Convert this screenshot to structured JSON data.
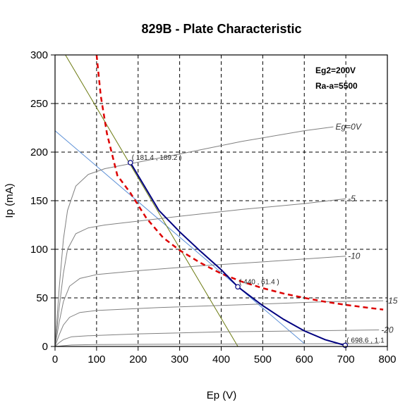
{
  "chart_data": {
    "type": "line",
    "title": "829B - Plate Characteristic",
    "xlabel": "Ep (V)",
    "ylabel": "Ip (mA)",
    "xlim": [
      0,
      800
    ],
    "ylim": [
      0,
      300
    ],
    "xticks": [
      "0",
      "100",
      "200",
      "300",
      "400",
      "500",
      "600",
      "700",
      "800"
    ],
    "yticks": [
      "0",
      "50",
      "100",
      "150",
      "200",
      "250",
      "300"
    ],
    "grid": "dashed",
    "info_lines": [
      "Eg2=200V",
      "Ra-a=5500"
    ],
    "colors": {
      "curves": "#808080",
      "load_line": "#000080",
      "max_dissipation": "#dd0000",
      "blue_line": "#5b8fd6",
      "green_line": "#6b7a10"
    },
    "series": [
      {
        "label": "Eg=0V",
        "points": [
          [
            0,
            0
          ],
          [
            10,
            60
          ],
          [
            20,
            110
          ],
          [
            30,
            140
          ],
          [
            50,
            165
          ],
          [
            80,
            177
          ],
          [
            120,
            183
          ],
          [
            180,
            188
          ],
          [
            300,
            198
          ],
          [
            450,
            211
          ],
          [
            600,
            222
          ],
          [
            670,
            226
          ]
        ]
      },
      {
        "label": "-5",
        "points": [
          [
            0,
            0
          ],
          [
            10,
            40
          ],
          [
            20,
            75
          ],
          [
            30,
            100
          ],
          [
            50,
            116
          ],
          [
            80,
            122
          ],
          [
            120,
            125
          ],
          [
            200,
            129
          ],
          [
            300,
            134
          ],
          [
            450,
            141
          ],
          [
            600,
            147
          ],
          [
            700,
            152
          ]
        ]
      },
      {
        "label": "-10",
        "points": [
          [
            0,
            0
          ],
          [
            10,
            25
          ],
          [
            20,
            46
          ],
          [
            35,
            62
          ],
          [
            60,
            70
          ],
          [
            100,
            74
          ],
          [
            200,
            78
          ],
          [
            350,
            83
          ],
          [
            500,
            87
          ],
          [
            700,
            93
          ]
        ]
      },
      {
        "label": "-15",
        "points": [
          [
            0,
            0
          ],
          [
            10,
            12
          ],
          [
            20,
            22
          ],
          [
            35,
            30
          ],
          [
            60,
            35
          ],
          [
            100,
            37
          ],
          [
            250,
            40
          ],
          [
            450,
            43
          ],
          [
            650,
            46
          ],
          [
            790,
            47
          ]
        ]
      },
      {
        "label": "-20",
        "points": [
          [
            0,
            0
          ],
          [
            10,
            4
          ],
          [
            20,
            7
          ],
          [
            40,
            10
          ],
          [
            80,
            11
          ],
          [
            200,
            13
          ],
          [
            400,
            15
          ],
          [
            600,
            16
          ],
          [
            780,
            17
          ]
        ]
      },
      {
        "label": "",
        "points": [
          [
            0,
            0
          ],
          [
            40,
            1.5
          ],
          [
            100,
            2
          ],
          [
            400,
            2.5
          ],
          [
            780,
            3
          ]
        ]
      }
    ],
    "load_line": {
      "points": [
        [
          181.4,
          189.2
        ],
        [
          250,
          140
        ],
        [
          300,
          118
        ],
        [
          350,
          98
        ],
        [
          400,
          79
        ],
        [
          440,
          61.4
        ],
        [
          500,
          42
        ],
        [
          550,
          28
        ],
        [
          600,
          16
        ],
        [
          650,
          7
        ],
        [
          698.6,
          1.1
        ]
      ]
    },
    "max_dissipation": {
      "points": [
        [
          100,
          300
        ],
        [
          110,
          258
        ],
        [
          125,
          219
        ],
        [
          150,
          176
        ],
        [
          181.4,
          158
        ],
        [
          220,
          132
        ],
        [
          260,
          112
        ],
        [
          300,
          99
        ],
        [
          350,
          86
        ],
        [
          400,
          75
        ],
        [
          450,
          66.7
        ],
        [
          500,
          60
        ],
        [
          550,
          54.5
        ],
        [
          600,
          50
        ],
        [
          650,
          46
        ],
        [
          700,
          42.8
        ],
        [
          750,
          40
        ],
        [
          790,
          38
        ]
      ]
    },
    "blue_line": {
      "points": [
        [
          0,
          222
        ],
        [
          600,
          3
        ]
      ]
    },
    "green_line": {
      "points": [
        [
          25,
          300
        ],
        [
          440,
          0
        ]
      ]
    },
    "markers": [
      {
        "x": 181.4,
        "y": 189.2,
        "label": "( 181.4 , 189.2 )"
      },
      {
        "x": 440,
        "y": 61.4,
        "label": "( 440 , 61.4 )"
      },
      {
        "x": 698.6,
        "y": 1.1,
        "label": "( 698.6 , 1.1"
      }
    ]
  }
}
